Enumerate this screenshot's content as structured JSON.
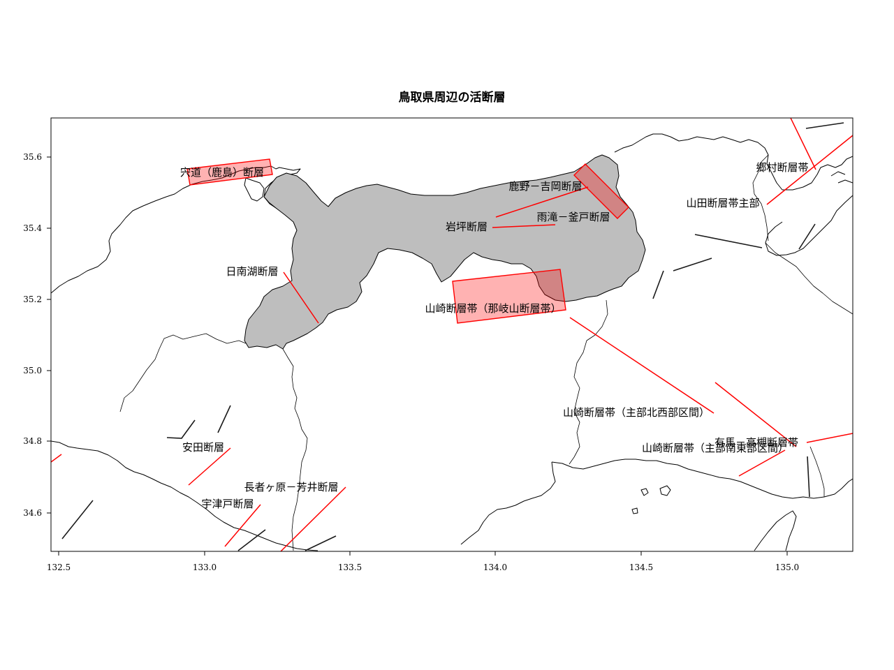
{
  "title": "鳥取県周辺の活断層",
  "axes": {
    "x_ticks": [
      "132.5",
      "133.0",
      "133.5",
      "134.0",
      "134.5",
      "135.0"
    ],
    "y_ticks": [
      "35.6",
      "35.4",
      "35.2",
      "35.0",
      "34.8",
      "34.6"
    ]
  },
  "colors": {
    "prefecture_fill": "#bebebe",
    "evaluated_fault": "#ff0000",
    "other_fault": "#1a1a1a",
    "fault_zone_fill": "rgba(255,0,0,0.3)"
  },
  "fault_labels": {
    "shinji": "宍道（鹿島）断層",
    "shikano": "鹿野－吉岡断層",
    "amedaki": "雨滝－釜戸断層",
    "iwatsubo": "岩坪断層",
    "nichinanko": "日南湖断層",
    "yamasaki_nagi": "山崎断層帯（那岐山断層帯）",
    "gomura": "郷村断層帯",
    "yamada": "山田断層帯主部",
    "yamasaki_main_nw": "山崎断層帯（主部北西部区間）",
    "arima_takatsuki": "有馬－高槻断層帯",
    "yamasaki_main_se": "山崎断層帯（主部南東部区間）",
    "yasuda": "安田断層",
    "chojagahara": "長者ヶ原－芳井断層",
    "utsudo": "宇津戸断層"
  }
}
